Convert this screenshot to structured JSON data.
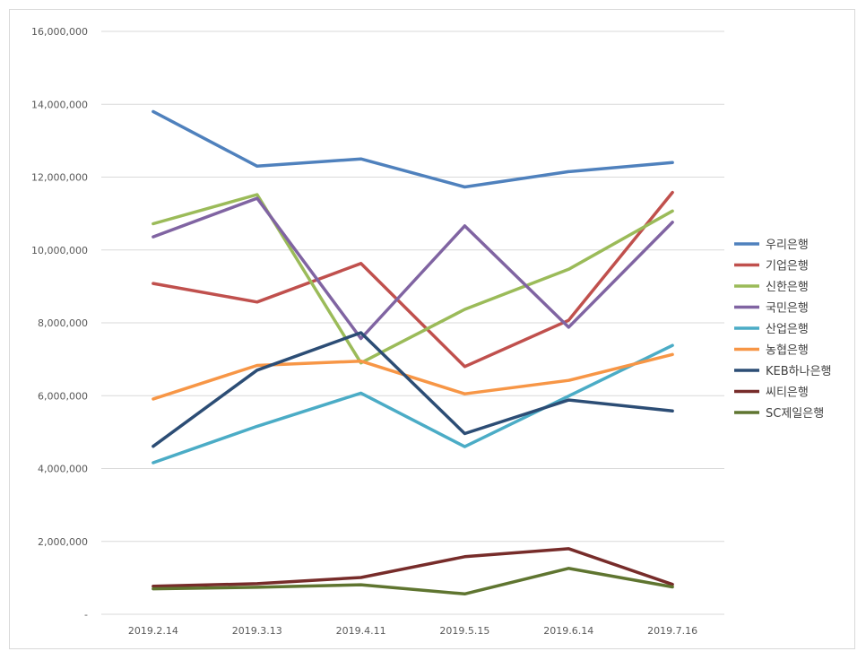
{
  "chart_data": {
    "type": "line",
    "title": "",
    "xlabel": "",
    "ylabel": "",
    "categories": [
      "2019.2.14",
      "2019.3.13",
      "2019.4.11",
      "2019.5.15",
      "2019.6.14",
      "2019.7.16"
    ],
    "ylim": [
      0,
      16000000
    ],
    "yticks": [
      0,
      2000000,
      4000000,
      6000000,
      8000000,
      10000000,
      12000000,
      14000000,
      16000000
    ],
    "ytick_labels": [
      "-",
      "2,000,000",
      "4,000,000",
      "6,000,000",
      "8,000,000",
      "10,000,000",
      "12,000,000",
      "14,000,000",
      "16,000,000"
    ],
    "grid": true,
    "legend_position": "right",
    "series": [
      {
        "name": "우리은행",
        "color": "#4f81bd",
        "values": [
          13800000,
          12300000,
          12500000,
          11730000,
          12150000,
          12400000
        ]
      },
      {
        "name": "기업은행",
        "color": "#c0504d",
        "values": [
          9080000,
          8570000,
          9630000,
          6800000,
          8070000,
          11580000
        ]
      },
      {
        "name": "신한은행",
        "color": "#9bbb59",
        "values": [
          10720000,
          11520000,
          6900000,
          8370000,
          9470000,
          11070000
        ]
      },
      {
        "name": "국민은행",
        "color": "#8064a2",
        "values": [
          10360000,
          11420000,
          7570000,
          10660000,
          7880000,
          10760000
        ]
      },
      {
        "name": "산업은행",
        "color": "#4bacc6",
        "values": [
          4160000,
          5160000,
          6070000,
          4600000,
          5990000,
          7380000
        ]
      },
      {
        "name": "농협은행",
        "color": "#f79646",
        "values": [
          5910000,
          6830000,
          6950000,
          6050000,
          6420000,
          7130000
        ]
      },
      {
        "name": "KEB하나은행",
        "color": "#2c4d75",
        "values": [
          4610000,
          6700000,
          7730000,
          4960000,
          5880000,
          5580000
        ]
      },
      {
        "name": "씨티은행",
        "color": "#772c2a",
        "values": [
          770000,
          840000,
          1010000,
          1580000,
          1800000,
          820000
        ]
      },
      {
        "name": "SC제일은행",
        "color": "#5f7530",
        "values": [
          700000,
          740000,
          810000,
          560000,
          1260000,
          750000
        ]
      }
    ]
  }
}
